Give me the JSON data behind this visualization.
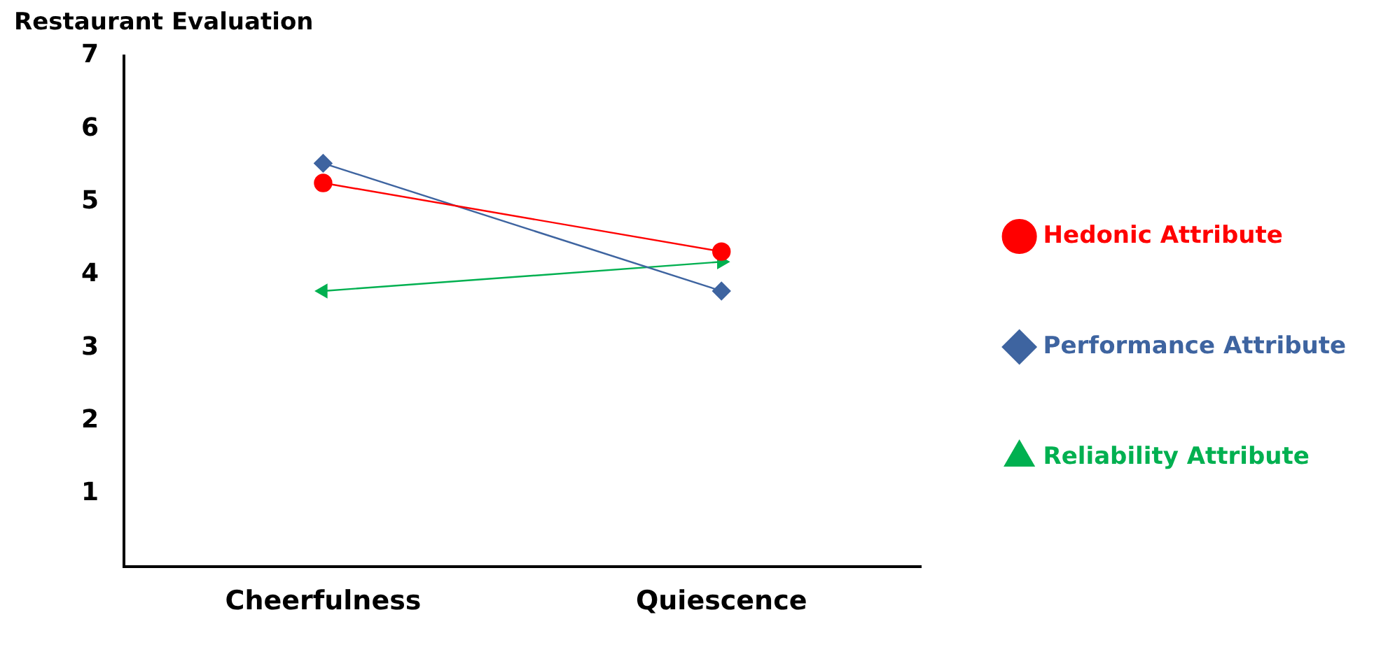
{
  "chart_data": {
    "type": "line",
    "ylabel": "Restaurant Evaluation",
    "categories": [
      "Cheerfulness",
      "Quiescence"
    ],
    "series": [
      {
        "name": "Hedonic Attribute",
        "color": "#ff0000",
        "values": [
          5.26,
          4.32
        ],
        "marker": "circle"
      },
      {
        "name": "Performance Attribute",
        "color": "#3e64a0",
        "values": [
          5.53,
          3.78
        ],
        "marker": "diamond"
      },
      {
        "name": "Reliability Attribute",
        "color": "#00b050",
        "values": [
          3.78,
          4.18
        ],
        "marker": "triangle"
      }
    ],
    "ylim": [
      0,
      7
    ],
    "yticks": [
      1,
      2,
      3,
      4,
      5,
      6,
      7
    ],
    "grid": false,
    "legend": "right"
  }
}
